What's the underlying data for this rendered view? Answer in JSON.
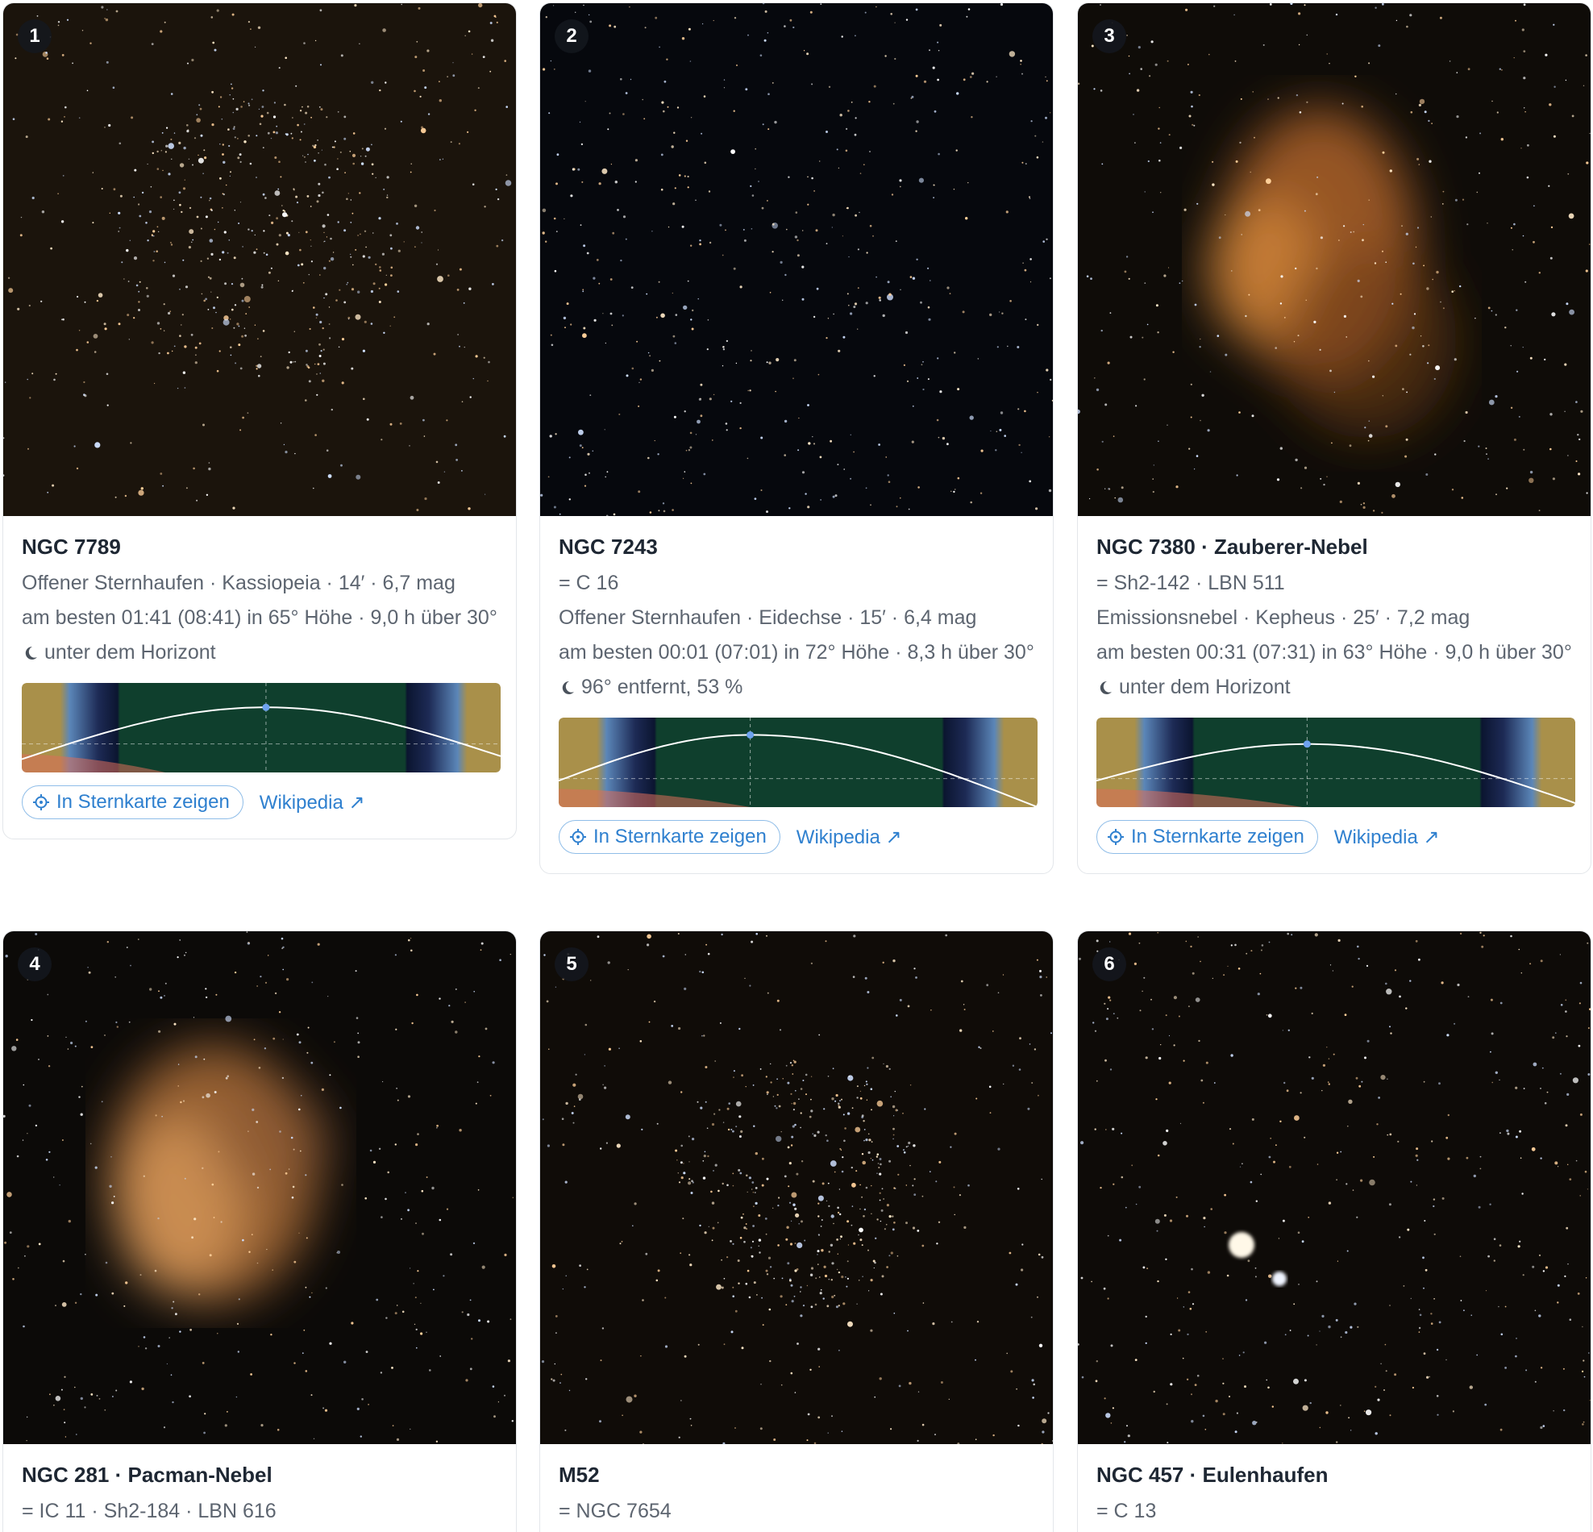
{
  "cards": [
    {
      "number": "1",
      "title": "NGC 7789",
      "lines": [
        "Offener Sternhaufen · Kassiopeia · 14′ · 6,7 mag",
        "am besten 01:41 (08:41) in 65° Höhe · 9,0 h über 30°"
      ],
      "moon": "unter dem Horizont",
      "map_button": "In Sternkarte zeigen",
      "wiki_link": "Wikipedia ↗"
    },
    {
      "number": "2",
      "title": "NGC 7243",
      "lines": [
        "= C 16",
        "Offener Sternhaufen · Eidechse · 15′ · 6,4 mag",
        "am besten 00:01 (07:01) in 72° Höhe · 8,3 h über 30°"
      ],
      "moon": "96° entfernt, 53 %",
      "map_button": "In Sternkarte zeigen",
      "wiki_link": "Wikipedia ↗"
    },
    {
      "number": "3",
      "title": "NGC 7380 · Zauberer-Nebel",
      "lines": [
        "= Sh2-142 · LBN 511",
        "Emissionsnebel · Kepheus · 25′ · 7,2 mag",
        "am besten 00:31 (07:31) in 63° Höhe · 9,0 h über 30°"
      ],
      "moon": "unter dem Horizont",
      "map_button": "In Sternkarte zeigen",
      "wiki_link": "Wikipedia ↗"
    },
    {
      "number": "4",
      "title": "NGC 281 · Pacman-Nebel",
      "lines": [
        "= IC 11 · Sh2-184 · LBN 616"
      ]
    },
    {
      "number": "5",
      "title": "M52",
      "lines": [
        "= NGC 7654"
      ]
    },
    {
      "number": "6",
      "title": "NGC 457 · Eulenhaufen",
      "lines": [
        "= C 13"
      ]
    }
  ]
}
